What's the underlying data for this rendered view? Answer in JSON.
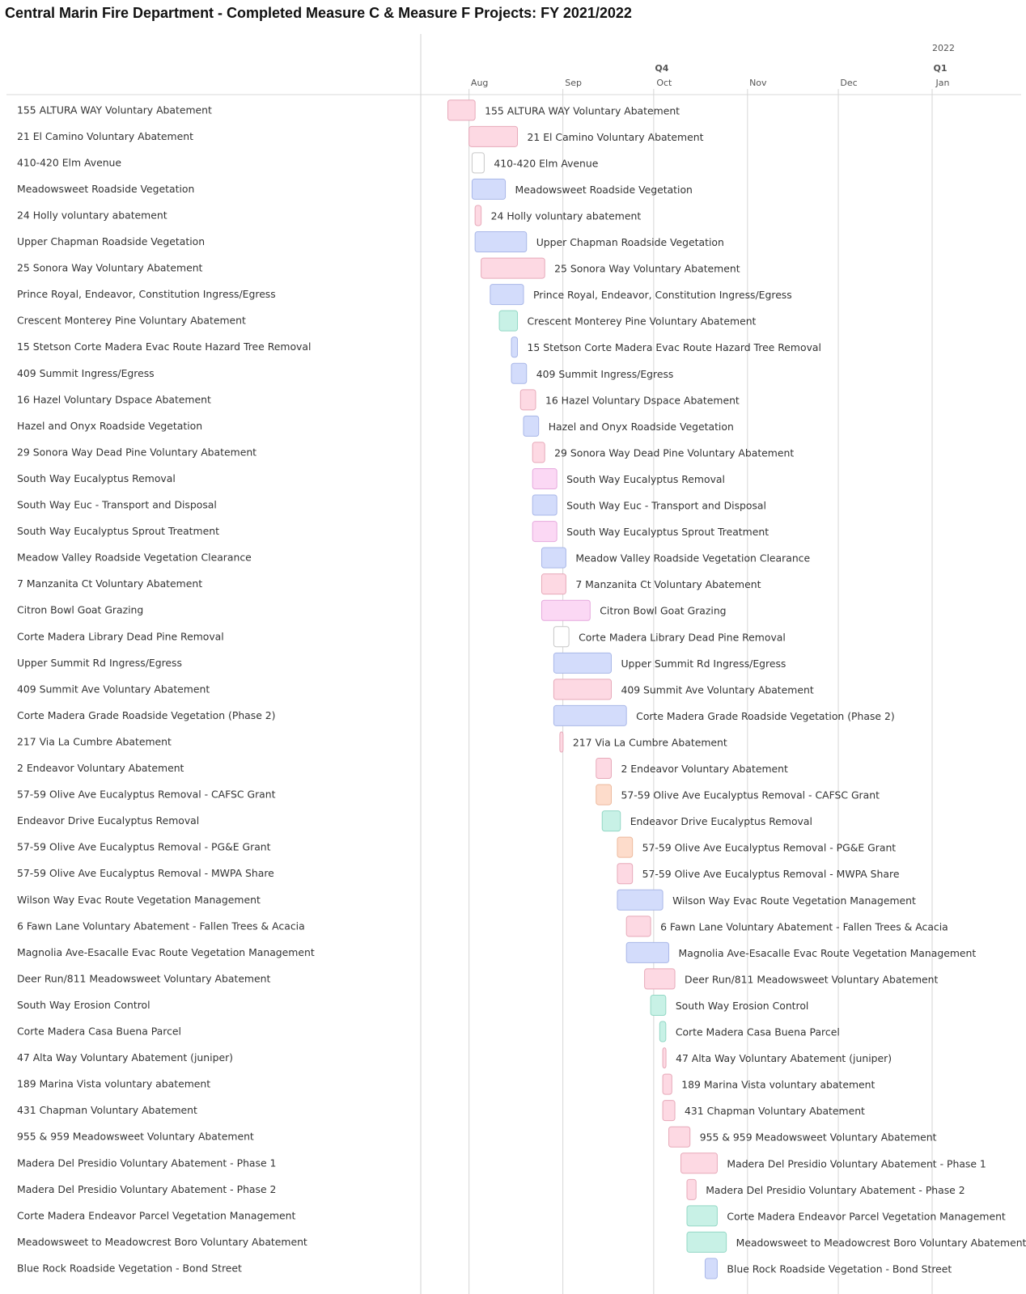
{
  "title": "Central Marin Fire Department - Completed Measure C & Measure F Projects: FY 2021/2022",
  "colors": {
    "pink": "#fdd9e3",
    "blue": "#d3dcfb",
    "white": "#ffffff",
    "teal": "#c8f1e6",
    "magenta": "#fbd8f4",
    "peach": "#fddccb"
  },
  "chart_data": {
    "type": "gantt",
    "title": "Central Marin Fire Department - Completed Measure C & Measure F Projects: FY 2021/2022",
    "x_axis": {
      "range": [
        "2021-07-23",
        "2022-01-28"
      ],
      "year_labels": [
        {
          "label": "2022",
          "date": "2022-01-01"
        }
      ],
      "quarter_labels": [
        {
          "label": "Q4",
          "date": "2021-10-01"
        },
        {
          "label": "Q1",
          "date": "2022-01-01"
        }
      ],
      "month_labels": [
        {
          "label": "Aug",
          "date": "2021-08-01"
        },
        {
          "label": "Sep",
          "date": "2021-09-01"
        },
        {
          "label": "Oct",
          "date": "2021-10-01"
        },
        {
          "label": "Nov",
          "date": "2021-11-01"
        },
        {
          "label": "Dec",
          "date": "2021-12-01"
        },
        {
          "label": "Jan",
          "date": "2022-01-01"
        }
      ]
    },
    "tasks": [
      {
        "name": "155 ALTURA WAY Voluntary Abatement",
        "start": "2021-07-25",
        "end": "2021-08-03",
        "color": "pink"
      },
      {
        "name": "21 El Camino Voluntary Abatement",
        "start": "2021-08-01",
        "end": "2021-08-17",
        "color": "pink"
      },
      {
        "name": "410-420 Elm Avenue",
        "start": "2021-08-02",
        "end": "2021-08-06",
        "color": "white"
      },
      {
        "name": "Meadowsweet Roadside Vegetation",
        "start": "2021-08-02",
        "end": "2021-08-13",
        "color": "blue"
      },
      {
        "name": "24 Holly voluntary abatement",
        "start": "2021-08-03",
        "end": "2021-08-05",
        "color": "pink"
      },
      {
        "name": "Upper Chapman Roadside Vegetation",
        "start": "2021-08-03",
        "end": "2021-08-20",
        "color": "blue"
      },
      {
        "name": "25 Sonora Way Voluntary Abatement",
        "start": "2021-08-05",
        "end": "2021-08-26",
        "color": "pink"
      },
      {
        "name": "Prince Royal, Endeavor, Constitution Ingress/Egress",
        "start": "2021-08-08",
        "end": "2021-08-19",
        "color": "blue"
      },
      {
        "name": "Crescent Monterey Pine Voluntary Abatement",
        "start": "2021-08-11",
        "end": "2021-08-17",
        "color": "teal"
      },
      {
        "name": "15 Stetson Corte Madera Evac Route Hazard Tree Removal",
        "start": "2021-08-15",
        "end": "2021-08-17",
        "color": "blue"
      },
      {
        "name": "409 Summit Ingress/Egress",
        "start": "2021-08-15",
        "end": "2021-08-20",
        "color": "blue"
      },
      {
        "name": "16 Hazel Voluntary Dspace Abatement",
        "start": "2021-08-18",
        "end": "2021-08-23",
        "color": "pink"
      },
      {
        "name": "Hazel and Onyx Roadside Vegetation",
        "start": "2021-08-19",
        "end": "2021-08-24",
        "color": "blue"
      },
      {
        "name": "29 Sonora Way Dead Pine Voluntary Abatement",
        "start": "2021-08-22",
        "end": "2021-08-26",
        "color": "pink"
      },
      {
        "name": "South Way Eucalyptus Removal",
        "start": "2021-08-22",
        "end": "2021-08-30",
        "color": "magenta"
      },
      {
        "name": "South Way Euc - Transport and Disposal",
        "start": "2021-08-22",
        "end": "2021-08-30",
        "color": "blue"
      },
      {
        "name": "South Way Eucalyptus Sprout Treatment",
        "start": "2021-08-22",
        "end": "2021-08-30",
        "color": "magenta"
      },
      {
        "name": "Meadow Valley Roadside Vegetation Clearance",
        "start": "2021-08-25",
        "end": "2021-09-02",
        "color": "blue"
      },
      {
        "name": "7 Manzanita Ct Voluntary Abatement",
        "start": "2021-08-25",
        "end": "2021-09-02",
        "color": "pink"
      },
      {
        "name": "Citron Bowl Goat Grazing",
        "start": "2021-08-25",
        "end": "2021-09-10",
        "color": "magenta"
      },
      {
        "name": "Corte Madera Library Dead Pine Removal",
        "start": "2021-08-29",
        "end": "2021-09-03",
        "color": "white"
      },
      {
        "name": "Upper Summit Rd Ingress/Egress",
        "start": "2021-08-29",
        "end": "2021-09-17",
        "color": "blue"
      },
      {
        "name": "409 Summit Ave Voluntary Abatement",
        "start": "2021-08-29",
        "end": "2021-09-17",
        "color": "pink"
      },
      {
        "name": "Corte Madera Grade Roadside Vegetation (Phase 2)",
        "start": "2021-08-29",
        "end": "2021-09-22",
        "color": "blue"
      },
      {
        "name": "217 Via La Cumbre Abatement",
        "start": "2021-08-31",
        "end": "2021-09-01",
        "color": "pink"
      },
      {
        "name": "2 Endeavor Voluntary Abatement",
        "start": "2021-09-12",
        "end": "2021-09-17",
        "color": "pink"
      },
      {
        "name": "57-59 Olive Ave Eucalyptus Removal - CAFSC Grant",
        "start": "2021-09-12",
        "end": "2021-09-17",
        "color": "peach"
      },
      {
        "name": "Endeavor Drive Eucalyptus Removal",
        "start": "2021-09-14",
        "end": "2021-09-20",
        "color": "teal"
      },
      {
        "name": "57-59 Olive Ave Eucalyptus Removal - PG&E Grant",
        "start": "2021-09-19",
        "end": "2021-09-24",
        "color": "peach"
      },
      {
        "name": "57-59 Olive Ave Eucalyptus Removal - MWPA Share",
        "start": "2021-09-19",
        "end": "2021-09-24",
        "color": "pink"
      },
      {
        "name": "Wilson Way Evac Route Vegetation Management",
        "start": "2021-09-19",
        "end": "2021-10-04",
        "color": "blue"
      },
      {
        "name": "6 Fawn Lane Voluntary Abatement - Fallen Trees & Acacia",
        "start": "2021-09-22",
        "end": "2021-09-30",
        "color": "pink"
      },
      {
        "name": "Magnolia Ave-Esacalle Evac Route Vegetation Management",
        "start": "2021-09-22",
        "end": "2021-10-06",
        "color": "blue"
      },
      {
        "name": "Deer Run/811 Meadowsweet Voluntary Abatement",
        "start": "2021-09-28",
        "end": "2021-10-08",
        "color": "pink"
      },
      {
        "name": "South Way Erosion Control",
        "start": "2021-09-30",
        "end": "2021-10-05",
        "color": "teal"
      },
      {
        "name": "Corte Madera Casa Buena Parcel",
        "start": "2021-10-03",
        "end": "2021-10-05",
        "color": "teal"
      },
      {
        "name": "47 Alta Way Voluntary Abatement (juniper)",
        "start": "2021-10-04",
        "end": "2021-10-05",
        "color": "pink"
      },
      {
        "name": "189 Marina Vista voluntary abatement",
        "start": "2021-10-04",
        "end": "2021-10-07",
        "color": "pink"
      },
      {
        "name": "431 Chapman Voluntary Abatement",
        "start": "2021-10-04",
        "end": "2021-10-08",
        "color": "pink"
      },
      {
        "name": "955 & 959 Meadowsweet Voluntary Abatement",
        "start": "2021-10-06",
        "end": "2021-10-13",
        "color": "pink"
      },
      {
        "name": "Madera Del Presidio Voluntary Abatement - Phase 1",
        "start": "2021-10-10",
        "end": "2021-10-22",
        "color": "pink"
      },
      {
        "name": "Madera Del Presidio Voluntary Abatement - Phase 2",
        "start": "2021-10-12",
        "end": "2021-10-15",
        "color": "pink"
      },
      {
        "name": "Corte Madera Endeavor Parcel Vegetation Management",
        "start": "2021-10-12",
        "end": "2021-10-22",
        "color": "teal"
      },
      {
        "name": "Meadowsweet to Meadowcrest Boro Voluntary Abatement",
        "start": "2021-10-12",
        "end": "2021-10-25",
        "color": "teal"
      },
      {
        "name": "Blue Rock Roadside Vegetation - Bond Street",
        "start": "2021-10-18",
        "end": "2021-10-22",
        "color": "blue"
      }
    ]
  }
}
